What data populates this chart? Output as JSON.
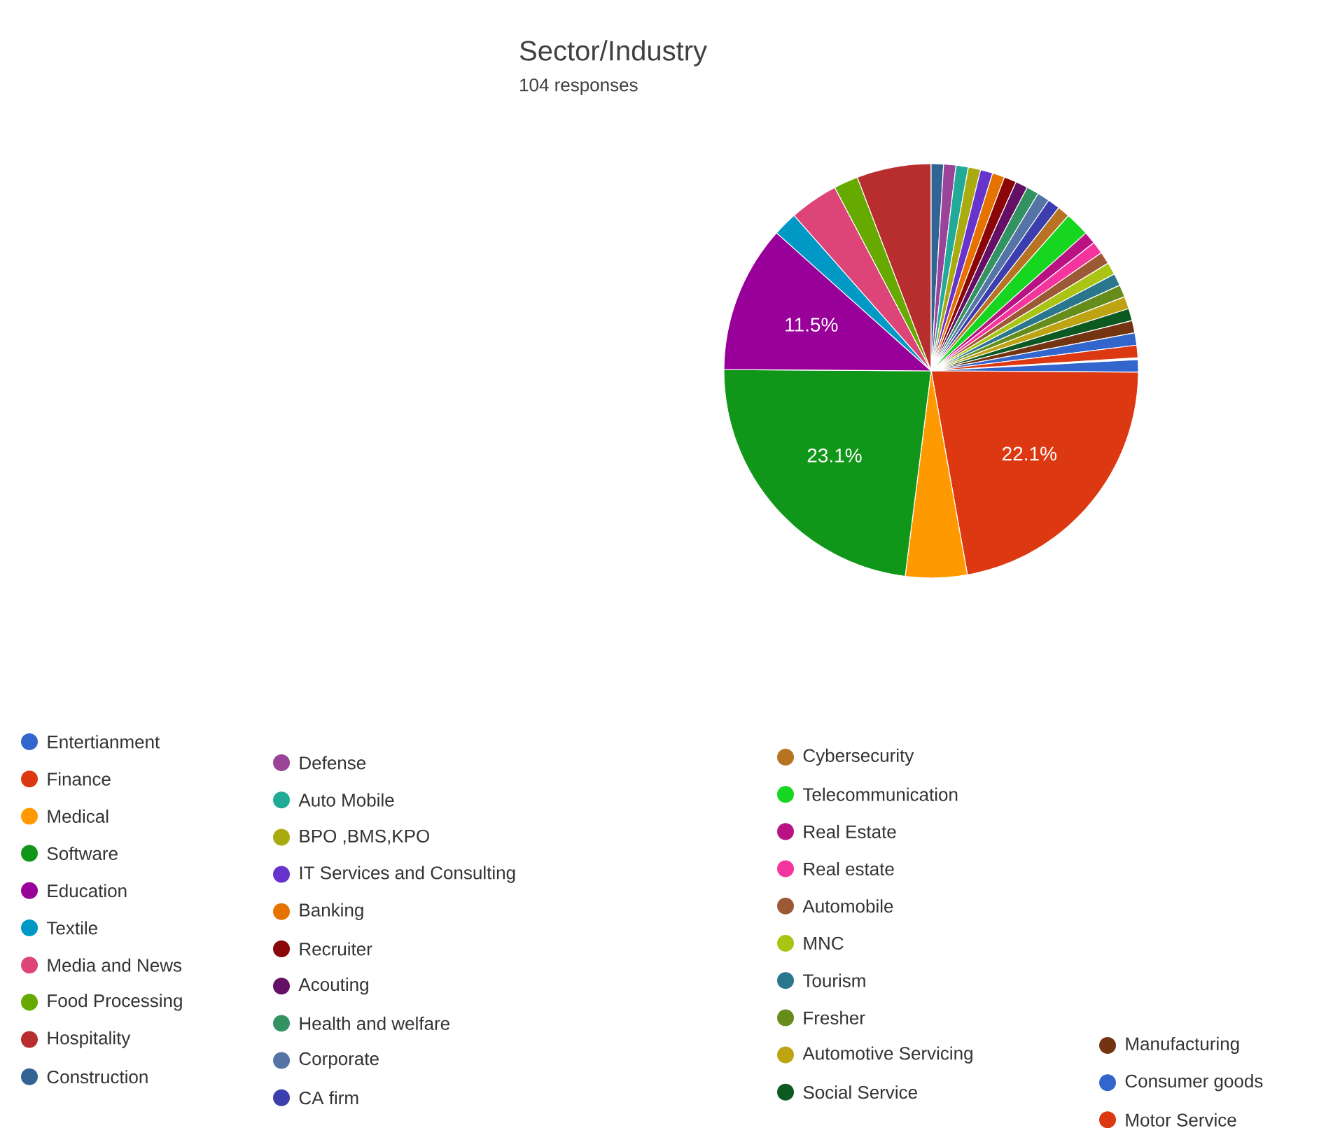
{
  "chart_data": {
    "type": "pie",
    "title": "Sector/Industry",
    "subtitle": "104 responses",
    "legend": "bottom",
    "categories": [
      "Entertianment",
      "Finance",
      "Medical",
      "Software",
      "Education",
      "Textile",
      "Media and News",
      "Food Processing",
      "Hospitality",
      "Construction",
      "Defense",
      "Auto Mobile",
      "BPO ,BMS,KPO",
      "IT Services and Consulting",
      "Banking",
      "Recruiter",
      "Acouting",
      "Health and welfare",
      "Corporate",
      "CA firm",
      "Cybersecurity",
      "Telecommunication",
      "Real Estate",
      "Real estate",
      "Automobile",
      "MNC",
      "Tourism",
      "Fresher",
      "Automotive Servicing",
      "Social Service",
      "Manufacturing",
      "Consumer goods",
      "Motor Service"
    ],
    "values": [
      0.96,
      22.1,
      4.8,
      23.1,
      11.5,
      1.9,
      3.8,
      1.9,
      5.8,
      0.96,
      0.96,
      0.96,
      0.96,
      0.96,
      0.96,
      0.96,
      0.96,
      0.96,
      0.96,
      0.96,
      0.96,
      1.9,
      0.96,
      0.96,
      0.96,
      0.96,
      0.96,
      0.96,
      0.96,
      0.96,
      0.96,
      0.96,
      0.96
    ],
    "value_labels": [
      null,
      "22.1%",
      null,
      "23.1%",
      "11.5%",
      null,
      null,
      null,
      null,
      null,
      null,
      null,
      null,
      null,
      null,
      null,
      null,
      null,
      null,
      null,
      null,
      null,
      null,
      null,
      null,
      null,
      null,
      null,
      null,
      null,
      null,
      null,
      null
    ],
    "colors": [
      "#3366cc",
      "#dc3912",
      "#ff9900",
      "#109618",
      "#990099",
      "#0099c6",
      "#dd4477",
      "#66aa00",
      "#b82e2e",
      "#316395",
      "#994499",
      "#22aa99",
      "#aaaa11",
      "#6633cc",
      "#e67300",
      "#8b0707",
      "#651067",
      "#329262",
      "#5574a6",
      "#3b3eac",
      "#b77322",
      "#16d620",
      "#b91383",
      "#f4359e",
      "#9c5935",
      "#a9c413",
      "#2a778d",
      "#668d1c",
      "#bea413",
      "#0c5922",
      "#743411",
      "#3366cc",
      "#dc3912"
    ]
  }
}
